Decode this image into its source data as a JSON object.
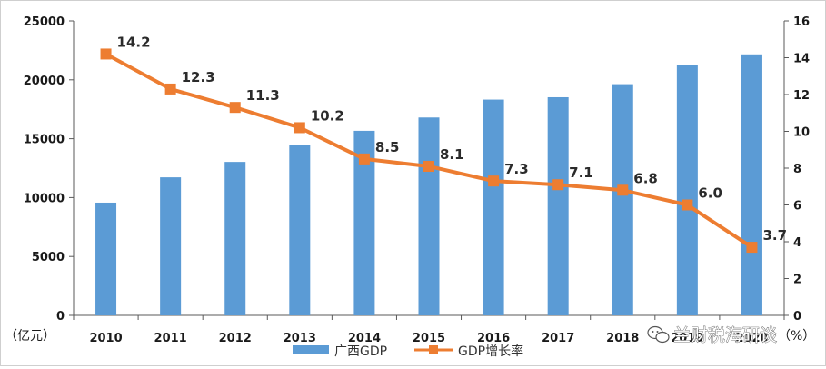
{
  "chart_data": {
    "type": "bar",
    "categories": [
      "2010",
      "2011",
      "2012",
      "2013",
      "2014",
      "2015",
      "2016",
      "2017",
      "2018",
      "2019",
      "2020"
    ],
    "series": [
      {
        "name": "广西GDP",
        "type": "bar",
        "axis": "left",
        "color": "#5b9bd5",
        "values": [
          9570,
          11720,
          13030,
          14450,
          15670,
          16800,
          18320,
          18520,
          19630,
          21240,
          22160
        ]
      },
      {
        "name": "GDP增长率",
        "type": "line",
        "axis": "right",
        "color": "#ed7d31",
        "values": [
          14.2,
          12.3,
          11.3,
          10.2,
          8.5,
          8.1,
          7.3,
          7.1,
          6.8,
          6.0,
          3.7
        ],
        "data_labels": [
          "14.2",
          "12.3",
          "11.3",
          "10.2",
          "8.5",
          "8.1",
          "7.3",
          "7.1",
          "6.8",
          "6.0",
          "3.7"
        ]
      }
    ],
    "y_left": {
      "unit_label": "（亿元）",
      "ylim": [
        0,
        25000
      ],
      "ticks": [
        "0",
        "5000",
        "10000",
        "15000",
        "20000",
        "25000"
      ]
    },
    "y_right": {
      "unit_label": "（%）",
      "ylim": [
        0,
        16
      ],
      "ticks": [
        "0",
        "2",
        "4",
        "6",
        "8",
        "10",
        "12",
        "14",
        "16"
      ]
    },
    "grid": false,
    "legend_position": "bottom"
  },
  "watermark": {
    "text": "兰财税海研谈"
  }
}
